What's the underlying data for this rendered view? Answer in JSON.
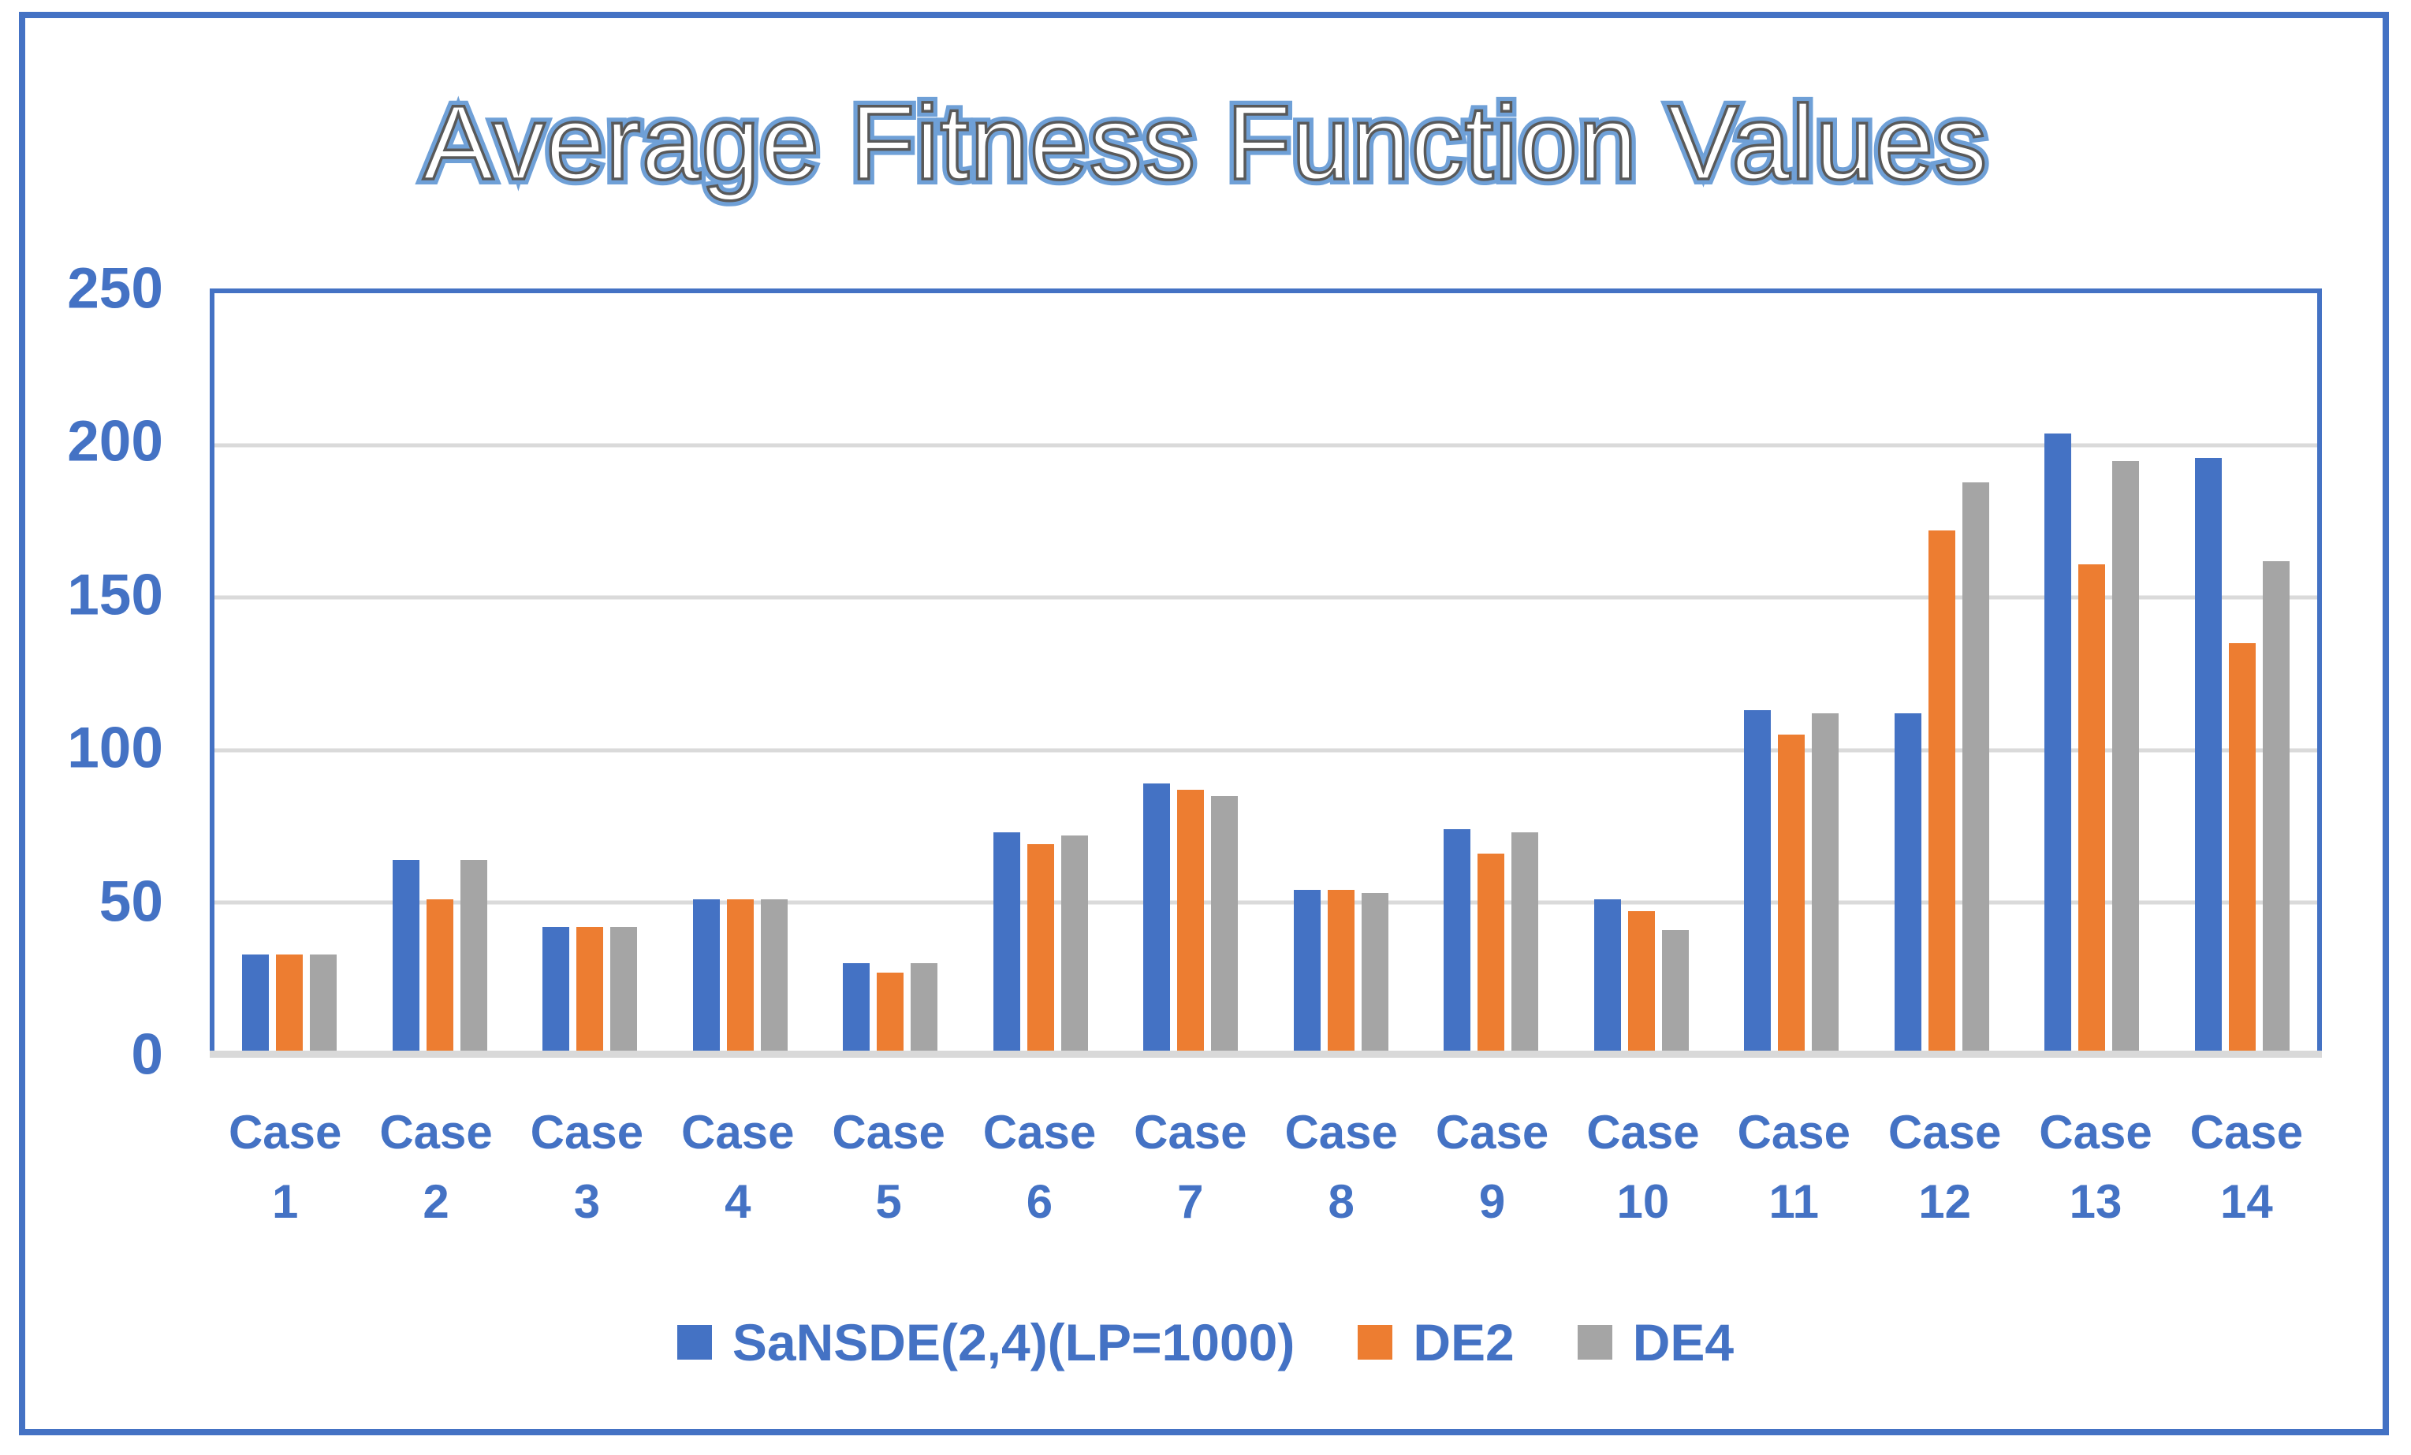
{
  "title": "Average Fitness Function Values",
  "colors": {
    "series_blue": "#4472C4",
    "series_orange": "#ED7D31",
    "series_gray": "#A5A5A5",
    "axis_text": "#4472C4",
    "gridline": "#DADADA",
    "baseline": "#D9D9D9",
    "plot_border": "#4472C4",
    "frame_border": "#4472C4",
    "title_fill": "#FFFFFF",
    "title_inner_stroke": "#595959",
    "title_halo": "#6FA0D7"
  },
  "chart_data": {
    "type": "bar",
    "title": "Average Fitness Function Values",
    "categories": [
      "Case 1",
      "Case 2",
      "Case 3",
      "Case 4",
      "Case 5",
      "Case 6",
      "Case 7",
      "Case 8",
      "Case 9",
      "Case 10",
      "Case 11",
      "Case 12",
      "Case 13",
      "Case 14"
    ],
    "series": [
      {
        "name": "SaNSDE(2,4)(LP=1000)",
        "color": "#4472C4",
        "values": [
          33,
          64,
          42,
          51,
          30,
          73,
          89,
          54,
          74,
          51,
          113,
          112,
          204,
          196
        ]
      },
      {
        "name": "DE2",
        "color": "#ED7D31",
        "values": [
          33,
          51,
          42,
          51,
          27,
          69,
          87,
          54,
          66,
          47,
          105,
          172,
          161,
          135
        ]
      },
      {
        "name": "DE4",
        "color": "#A5A5A5",
        "values": [
          33,
          64,
          42,
          51,
          30,
          72,
          85,
          53,
          73,
          41,
          112,
          188,
          195,
          162
        ]
      }
    ],
    "xlabel": "",
    "ylabel": "",
    "ylim": [
      0,
      250
    ],
    "yticks": [
      0,
      50,
      100,
      150,
      200,
      250
    ],
    "grid": "horizontal",
    "legend_position": "bottom"
  }
}
